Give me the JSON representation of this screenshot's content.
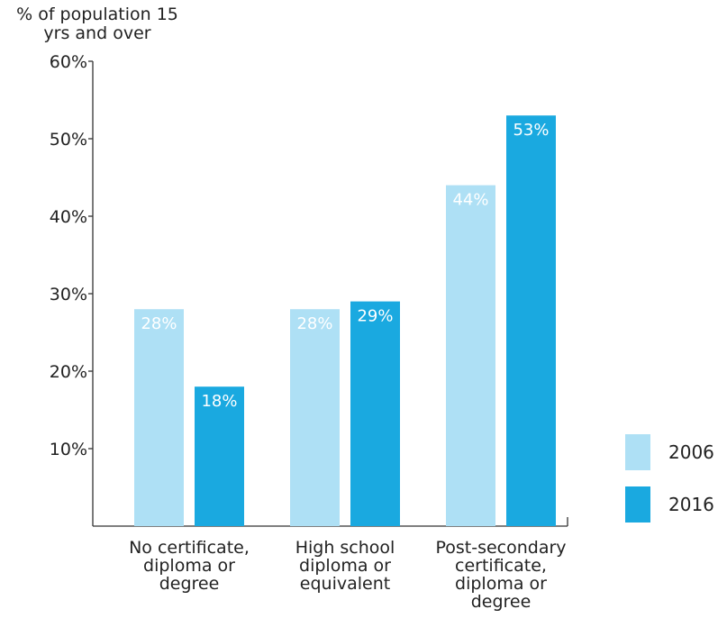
{
  "chart_data": {
    "type": "bar",
    "ylabel_lines": [
      "% of population 15",
      "yrs and over"
    ],
    "ylim": [
      0,
      60
    ],
    "yticks": [
      10,
      20,
      30,
      40,
      50,
      60
    ],
    "ytick_labels": [
      "10%",
      "20%",
      "30%",
      "40%",
      "50%",
      "60%"
    ],
    "categories": [
      {
        "lines": [
          "No certificate,",
          "diploma or",
          "degree"
        ]
      },
      {
        "lines": [
          "High school",
          "diploma or",
          "equivalent"
        ]
      },
      {
        "lines": [
          "Post-secondary",
          "certificate,",
          "diploma or",
          "degree"
        ]
      }
    ],
    "series": [
      {
        "name": "2006",
        "color": "#aee0f5",
        "values": [
          28,
          28,
          44
        ],
        "labels": [
          "28%",
          "28%",
          "44%"
        ]
      },
      {
        "name": "2016",
        "color": "#1aa9e0",
        "values": [
          18,
          29,
          53
        ],
        "labels": [
          "18%",
          "29%",
          "53%"
        ]
      }
    ],
    "legend_position": "right",
    "grid": false
  }
}
